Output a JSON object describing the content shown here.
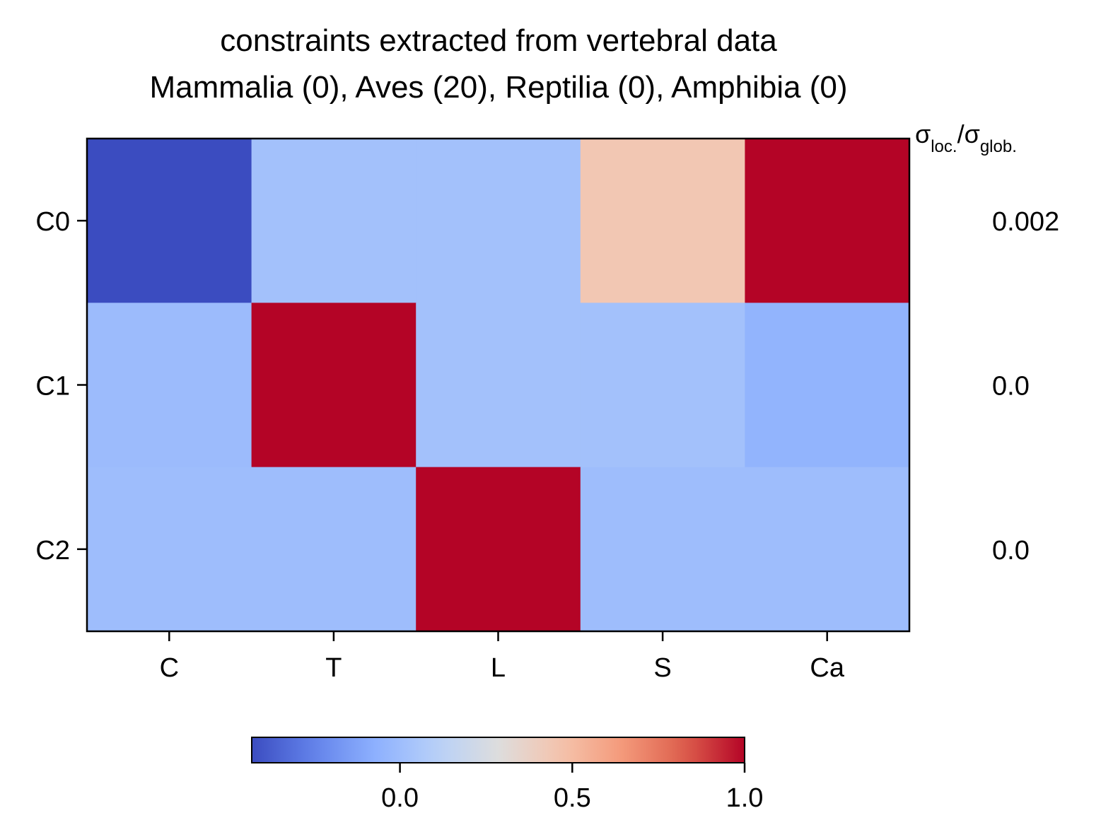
{
  "chart_data": {
    "type": "heatmap",
    "title": "constraints extracted from vertebral data",
    "subtitle": "Mammalia (0), Aves (20), Reptilia (0), Amphibia (0)",
    "columns": [
      "C",
      "T",
      "L",
      "S",
      "Ca"
    ],
    "rows": [
      "C0",
      "C1",
      "C2"
    ],
    "values": [
      [
        -0.43,
        0.02,
        0.02,
        0.44,
        1.0
      ],
      [
        -0.01,
        1.0,
        0.02,
        0.02,
        -0.05
      ],
      [
        0.0,
        0.0,
        1.0,
        0.0,
        0.0
      ]
    ],
    "side_label": {
      "sigma": "σ",
      "loc_sub": "loc.",
      "slash": "/σ",
      "glob_sub": "glob."
    },
    "row_ratios": [
      "0.002",
      "0.0",
      "0.0"
    ],
    "colorbar": {
      "colormap": "coolwarm",
      "vmin": -0.43,
      "vmax": 1.0,
      "ticks": [
        0.0,
        0.5,
        1.0
      ],
      "tick_labels": [
        "0.0",
        "0.5",
        "1.0"
      ],
      "orientation": "horizontal",
      "placement": "bottom"
    }
  }
}
